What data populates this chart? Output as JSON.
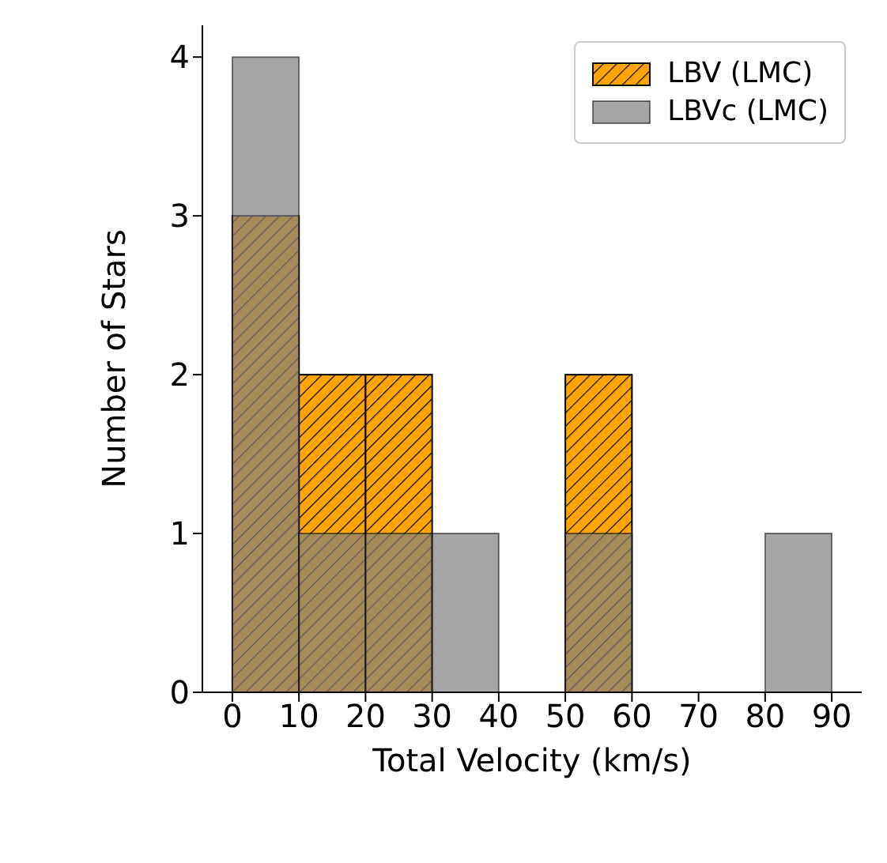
{
  "chart_data": {
    "type": "histogram",
    "xlabel": "Total Velocity (km/s)",
    "ylabel": "Number of Stars",
    "bins": [
      0,
      10,
      20,
      30,
      40,
      50,
      60,
      70,
      80,
      90
    ],
    "series": [
      {
        "name": "LBV (LMC)",
        "color": "#ffa500",
        "values": [
          3,
          2,
          2,
          0,
          0,
          2,
          0,
          0,
          0
        ]
      },
      {
        "name": "LBVc (LMC)",
        "color": "#808080",
        "values": [
          4,
          1,
          1,
          1,
          0,
          1,
          0,
          0,
          1
        ]
      }
    ],
    "xlim": [
      -4.5,
      94.5
    ],
    "ylim": [
      0,
      4.2
    ],
    "xticks": [
      0,
      10,
      20,
      30,
      40,
      50,
      60,
      70,
      80,
      90
    ],
    "yticks": [
      0,
      1,
      2,
      3,
      4
    ],
    "legend": "top right",
    "grid": false
  }
}
